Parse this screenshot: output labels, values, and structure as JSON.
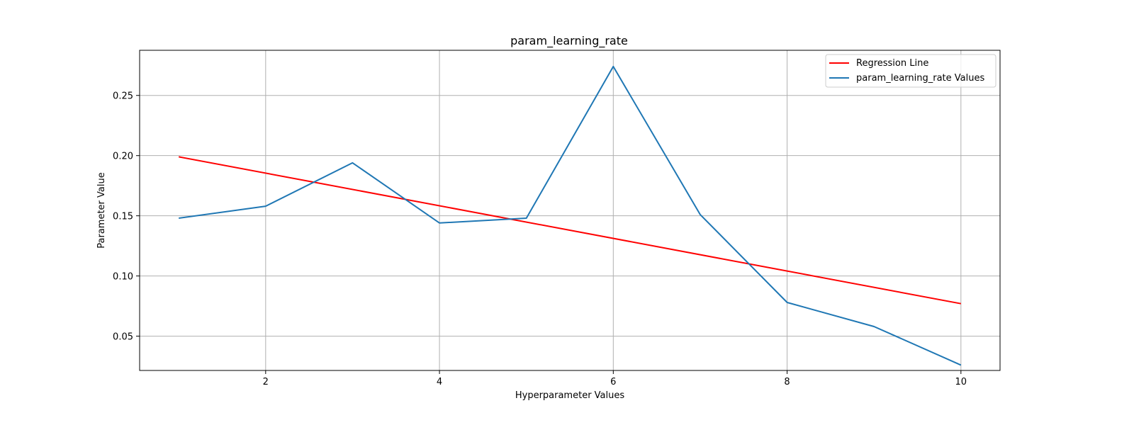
{
  "chart_data": {
    "type": "line",
    "title": "param_learning_rate",
    "xlabel": "Hyperparameter Values",
    "ylabel": "Parameter Value",
    "xlim": [
      0.55,
      10.45
    ],
    "ylim": [
      0.0215,
      0.2875
    ],
    "grid": true,
    "legend_position": "top-right",
    "xticks": [
      2,
      4,
      6,
      8,
      10
    ],
    "xtick_labels": [
      "2",
      "4",
      "6",
      "8",
      "10"
    ],
    "yticks": [
      0.05,
      0.1,
      0.15,
      0.2,
      0.25
    ],
    "ytick_labels": [
      "0.05",
      "0.10",
      "0.15",
      "0.20",
      "0.25"
    ],
    "series": [
      {
        "name": "Regression Line",
        "color": "#ff0000",
        "x": [
          1,
          10
        ],
        "values": [
          0.199,
          0.077
        ]
      },
      {
        "name": "param_learning_rate Values",
        "color": "#1f77b4",
        "x": [
          1,
          2,
          3,
          4,
          5,
          6,
          7,
          8,
          9,
          10
        ],
        "values": [
          0.148,
          0.158,
          0.194,
          0.144,
          0.148,
          0.274,
          0.151,
          0.078,
          0.058,
          0.026
        ]
      }
    ]
  }
}
